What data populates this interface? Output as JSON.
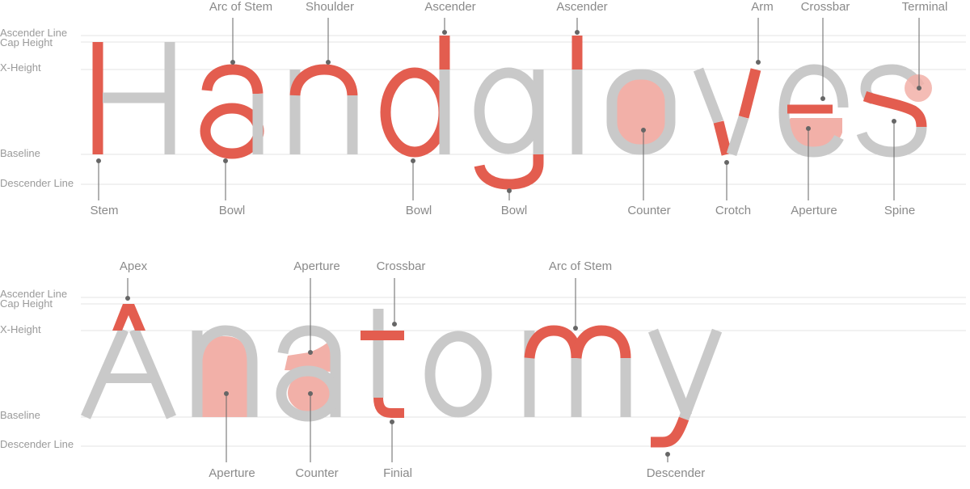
{
  "colors": {
    "glyph": "#c9c9c9",
    "highlight": "#e35d4f",
    "fill": "#f2b0a8",
    "guide": "#e3e3e3",
    "guide_label": "#9a9a9a",
    "leader": "#666666",
    "label": "#8a8a8a"
  },
  "guide_labels": {
    "ascender": "Ascender Line",
    "cap": "Cap Height",
    "xheight": "X-Height",
    "baseline": "Baseline",
    "descender": "Descender Line"
  },
  "word1": {
    "text": "Handgloves",
    "labels": {
      "arc_of_stem": "Arc of Stem",
      "shoulder": "Shoulder",
      "ascender_d": "Ascender",
      "ascender_l": "Ascender",
      "arm": "Arm",
      "crossbar": "Crossbar",
      "terminal": "Terminal",
      "stem": "Stem",
      "bowl_a": "Bowl",
      "bowl_d": "Bowl",
      "bowl_g": "Bowl",
      "counter": "Counter",
      "crotch": "Crotch",
      "aperture": "Aperture",
      "spine": "Spine"
    }
  },
  "word2": {
    "text": "Anatomy",
    "labels": {
      "apex": "Apex",
      "aperture_top": "Aperture",
      "crossbar": "Crossbar",
      "arc_of_stem": "Arc of Stem",
      "aperture_bottom": "Aperture",
      "counter": "Counter",
      "finial": "Finial",
      "descender": "Descender"
    }
  }
}
